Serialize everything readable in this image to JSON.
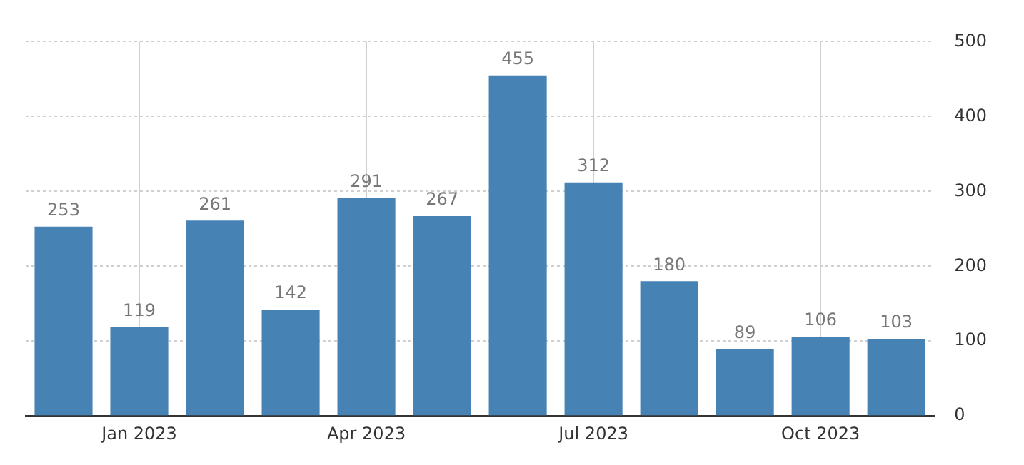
{
  "chart_data": {
    "type": "bar",
    "categories": [
      null,
      "Jan 2023",
      null,
      null,
      "Apr 2023",
      null,
      null,
      "Jul 2023",
      null,
      null,
      "Oct 2023",
      null
    ],
    "values": [
      253,
      119,
      261,
      142,
      291,
      267,
      455,
      312,
      180,
      89,
      106,
      103
    ],
    "color": "#4682b4",
    "ylim": [
      0,
      500
    ],
    "yticks": [
      0,
      100,
      200,
      300,
      400,
      500
    ],
    "grid": true,
    "data_labels": true
  }
}
